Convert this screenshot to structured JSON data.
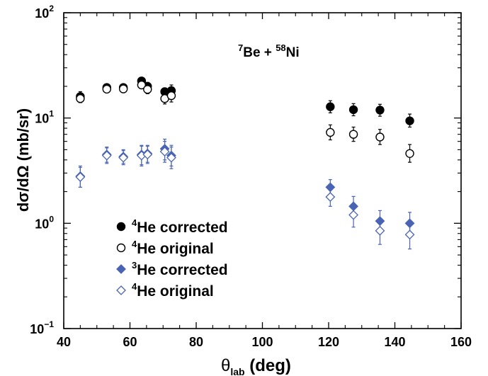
{
  "chart_data": {
    "type": "scatter",
    "yscale": "log",
    "xlim": [
      40,
      160
    ],
    "ylim": [
      0.1,
      100
    ],
    "grid": false,
    "legend_placement": "bottom-left",
    "xlabel": {
      "main": "θ",
      "sub": "lab",
      "rest": " (deg)"
    },
    "ylabel": "dσ/dΩ (mb/sr)",
    "x_ticks": [
      "40",
      "60",
      "80",
      "100",
      "120",
      "140",
      "160"
    ],
    "y_ticks": [
      {
        "base": "10",
        "exp": "−1"
      },
      {
        "base": "10",
        "exp": "0"
      },
      {
        "base": "10",
        "exp": "1"
      },
      {
        "base": "10",
        "exp": "2"
      }
    ],
    "annotation": {
      "sup1": "7",
      "t1": "Be + ",
      "sup2": "58",
      "t2": "Ni"
    },
    "series": [
      {
        "sup": "4",
        "label": "He corrected",
        "marker": "circle",
        "filled": true,
        "color": "#000000",
        "points": [
          {
            "x": 45,
            "y": 16.0,
            "lo": 14.2,
            "hi": 17.8
          },
          {
            "x": 53,
            "y": 19.5,
            "lo": 18.0,
            "hi": 21.0
          },
          {
            "x": 58,
            "y": 19.5,
            "lo": 18.0,
            "hi": 21.0
          },
          {
            "x": 63.5,
            "y": 22.5,
            "lo": 20.8,
            "hi": 24.3
          },
          {
            "x": 65.3,
            "y": 20.0,
            "lo": 18.3,
            "hi": 21.8
          },
          {
            "x": 70.5,
            "y": 17.8,
            "lo": 16.3,
            "hi": 19.3
          },
          {
            "x": 72.5,
            "y": 18.2,
            "lo": 16.0,
            "hi": 20.6
          },
          {
            "x": 120.5,
            "y": 12.8,
            "lo": 11.2,
            "hi": 14.6
          },
          {
            "x": 127.5,
            "y": 12.0,
            "lo": 10.5,
            "hi": 13.7
          },
          {
            "x": 135.5,
            "y": 11.9,
            "lo": 10.4,
            "hi": 13.5
          },
          {
            "x": 144.5,
            "y": 9.4,
            "lo": 8.2,
            "hi": 10.9
          }
        ]
      },
      {
        "sup": "4",
        "label": "He original",
        "marker": "circle",
        "filled": false,
        "color": "#000000",
        "points": [
          {
            "x": 45,
            "y": 15.3,
            "lo": 14.0,
            "hi": 16.7
          },
          {
            "x": 53,
            "y": 18.8,
            "lo": 17.5,
            "hi": 20.2
          },
          {
            "x": 58,
            "y": 18.9,
            "lo": 17.6,
            "hi": 20.3
          },
          {
            "x": 63.5,
            "y": 20.6,
            "lo": 19.0,
            "hi": 22.3
          },
          {
            "x": 65.3,
            "y": 18.7,
            "lo": 17.0,
            "hi": 20.4
          },
          {
            "x": 70.5,
            "y": 15.3,
            "lo": 13.6,
            "hi": 17.2
          },
          {
            "x": 72.5,
            "y": 16.3,
            "lo": 14.2,
            "hi": 18.5
          },
          {
            "x": 120.5,
            "y": 7.3,
            "lo": 6.2,
            "hi": 8.6
          },
          {
            "x": 127.5,
            "y": 7.0,
            "lo": 6.0,
            "hi": 8.2
          },
          {
            "x": 135.5,
            "y": 6.6,
            "lo": 5.6,
            "hi": 7.8
          },
          {
            "x": 144.5,
            "y": 4.6,
            "lo": 3.8,
            "hi": 5.6
          }
        ]
      },
      {
        "sup": "3",
        "label": "He corrected",
        "marker": "diamond",
        "filled": true,
        "color": "#4a64b4",
        "points": [
          {
            "x": 45,
            "y": 2.8,
            "lo": 2.2,
            "hi": 3.5
          },
          {
            "x": 53,
            "y": 4.5,
            "lo": 3.8,
            "hi": 5.3
          },
          {
            "x": 58,
            "y": 4.3,
            "lo": 3.7,
            "hi": 5.0
          },
          {
            "x": 63.5,
            "y": 4.5,
            "lo": 3.6,
            "hi": 5.5
          },
          {
            "x": 65.3,
            "y": 4.6,
            "lo": 3.8,
            "hi": 5.5
          },
          {
            "x": 70.5,
            "y": 5.1,
            "lo": 4.0,
            "hi": 6.3
          },
          {
            "x": 72.5,
            "y": 4.4,
            "lo": 3.5,
            "hi": 5.5
          },
          {
            "x": 120.5,
            "y": 2.2,
            "lo": 1.8,
            "hi": 2.6
          },
          {
            "x": 127.5,
            "y": 1.45,
            "lo": 1.15,
            "hi": 1.8
          },
          {
            "x": 135.5,
            "y": 1.05,
            "lo": 0.82,
            "hi": 1.32
          },
          {
            "x": 144.5,
            "y": 1.0,
            "lo": 0.78,
            "hi": 1.27
          }
        ]
      },
      {
        "sup": "4",
        "label": "He original",
        "marker": "diamond",
        "filled": false,
        "color": "#4a64b4",
        "points": [
          {
            "x": 45,
            "y": 2.75,
            "lo": 2.2,
            "hi": 3.4
          },
          {
            "x": 53,
            "y": 4.4,
            "lo": 3.7,
            "hi": 5.2
          },
          {
            "x": 58,
            "y": 4.2,
            "lo": 3.6,
            "hi": 4.9
          },
          {
            "x": 63.5,
            "y": 4.4,
            "lo": 3.5,
            "hi": 5.4
          },
          {
            "x": 65.3,
            "y": 4.5,
            "lo": 3.7,
            "hi": 5.4
          },
          {
            "x": 70.5,
            "y": 4.8,
            "lo": 3.8,
            "hi": 6.0
          },
          {
            "x": 72.5,
            "y": 4.2,
            "lo": 3.3,
            "hi": 5.3
          },
          {
            "x": 120.5,
            "y": 1.78,
            "lo": 1.45,
            "hi": 2.15
          },
          {
            "x": 127.5,
            "y": 1.2,
            "lo": 0.92,
            "hi": 1.5
          },
          {
            "x": 135.5,
            "y": 0.85,
            "lo": 0.63,
            "hi": 1.1
          },
          {
            "x": 144.5,
            "y": 0.78,
            "lo": 0.57,
            "hi": 1.02
          }
        ]
      }
    ]
  }
}
